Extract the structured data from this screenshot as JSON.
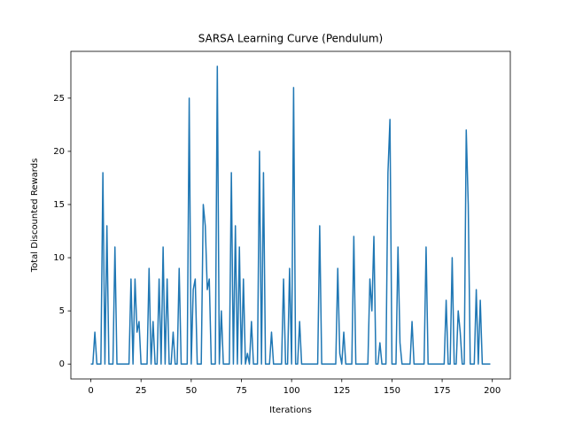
{
  "chart_data": {
    "type": "line",
    "title": "SARSA Learning Curve (Pendulum)",
    "x_label": "Iterations",
    "y_label": "Total Discounted Rewards",
    "x": [
      0,
      1,
      2,
      3,
      4,
      5,
      6,
      7,
      8,
      9,
      10,
      11,
      12,
      13,
      14,
      15,
      16,
      17,
      18,
      19,
      20,
      21,
      22,
      23,
      24,
      25,
      26,
      27,
      28,
      29,
      30,
      31,
      32,
      33,
      34,
      35,
      36,
      37,
      38,
      39,
      40,
      41,
      42,
      43,
      44,
      45,
      46,
      47,
      48,
      49,
      50,
      51,
      52,
      53,
      54,
      55,
      56,
      57,
      58,
      59,
      60,
      61,
      62,
      63,
      64,
      65,
      66,
      67,
      68,
      69,
      70,
      71,
      72,
      73,
      74,
      75,
      76,
      77,
      78,
      79,
      80,
      81,
      82,
      83,
      84,
      85,
      86,
      87,
      88,
      89,
      90,
      91,
      92,
      93,
      94,
      95,
      96,
      97,
      98,
      99,
      100,
      101,
      102,
      103,
      104,
      105,
      106,
      107,
      108,
      109,
      110,
      111,
      112,
      113,
      114,
      115,
      116,
      117,
      118,
      119,
      120,
      121,
      122,
      123,
      124,
      125,
      126,
      127,
      128,
      129,
      130,
      131,
      132,
      133,
      134,
      135,
      136,
      137,
      138,
      139,
      140,
      141,
      142,
      143,
      144,
      145,
      146,
      147,
      148,
      149,
      150,
      151,
      152,
      153,
      154,
      155,
      156,
      157,
      158,
      159,
      160,
      161,
      162,
      163,
      164,
      165,
      166,
      167,
      168,
      169,
      170,
      171,
      172,
      173,
      174,
      175,
      176,
      177,
      178,
      179,
      180,
      181,
      182,
      183,
      184,
      185,
      186,
      187,
      188,
      189,
      190,
      191,
      192,
      193,
      194,
      195,
      196,
      197,
      198,
      199
    ],
    "series": [
      {
        "color": "#1f77b4",
        "values": [
          0,
          0,
          3,
          0,
          0,
          0,
          18,
          0,
          13,
          0,
          0,
          0,
          11,
          0,
          0,
          0,
          0,
          0,
          0,
          0,
          8,
          0,
          8,
          3,
          4,
          0,
          0,
          0,
          0,
          9,
          0,
          4,
          0,
          0,
          8,
          0,
          11,
          0,
          8,
          0,
          0,
          3,
          0,
          0,
          9,
          0,
          0,
          0,
          0,
          25,
          0,
          7,
          8,
          0,
          0,
          0,
          15,
          13,
          7,
          8,
          0,
          0,
          0,
          28,
          0,
          5,
          0,
          0,
          0,
          0,
          18,
          0,
          13,
          0,
          11,
          0,
          8,
          0,
          1,
          0,
          4,
          0,
          0,
          0,
          20,
          0,
          18,
          0,
          0,
          0,
          3,
          0,
          0,
          0,
          0,
          0,
          8,
          0,
          0,
          9,
          0,
          26,
          0,
          0,
          4,
          0,
          0,
          0,
          0,
          0,
          0,
          0,
          0,
          0,
          13,
          0,
          0,
          0,
          0,
          0,
          0,
          0,
          0,
          9,
          1,
          0,
          3,
          0,
          0,
          0,
          0,
          12,
          0,
          0,
          0,
          0,
          0,
          0,
          0,
          8,
          5,
          12,
          0,
          0,
          2,
          0,
          0,
          0,
          18,
          23,
          0,
          0,
          0,
          11,
          2,
          0,
          0,
          0,
          0,
          0,
          4,
          0,
          0,
          0,
          0,
          0,
          0,
          11,
          0,
          0,
          0,
          0,
          0,
          0,
          0,
          0,
          0,
          6,
          0,
          0,
          10,
          0,
          0,
          5,
          3,
          0,
          0,
          22,
          15,
          0,
          0,
          0,
          7,
          0,
          6,
          0,
          0,
          0,
          0,
          0
        ]
      }
    ],
    "xlim": [
      -9.95,
      208.95
    ],
    "ylim": [
      -1.4,
      29.4
    ],
    "xticks": [
      0,
      25,
      50,
      75,
      100,
      125,
      150,
      175,
      200
    ],
    "yticks": [
      0,
      5,
      10,
      15,
      20,
      25
    ],
    "grid": false
  }
}
